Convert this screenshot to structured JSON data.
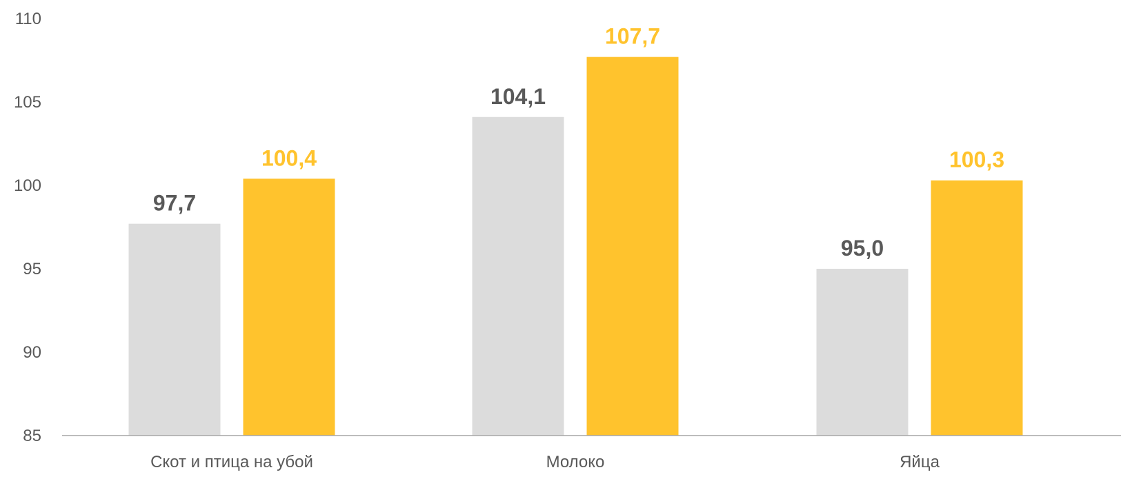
{
  "chart_data": {
    "type": "bar",
    "categories": [
      "Скот и птица на убой",
      "Молоко",
      "Яйца"
    ],
    "series": [
      {
        "values": [
          97.7,
          104.1,
          95.0
        ],
        "labels": [
          "97,7",
          "104,1",
          "95,0"
        ],
        "color": "#DCDCDC",
        "label_color": "#595959"
      },
      {
        "values": [
          100.4,
          107.7,
          100.3
        ],
        "labels": [
          "100,4",
          "107,7",
          "100,3"
        ],
        "color": "#FFC32D",
        "label_color": "#FFC32D"
      }
    ],
    "y_ticks": [
      "85",
      "90",
      "95",
      "100",
      "105",
      "110"
    ],
    "ylim": [
      85,
      110
    ],
    "grid": false,
    "legend": "none",
    "axis_color": "#A6A6A6",
    "text_color": "#595959"
  }
}
